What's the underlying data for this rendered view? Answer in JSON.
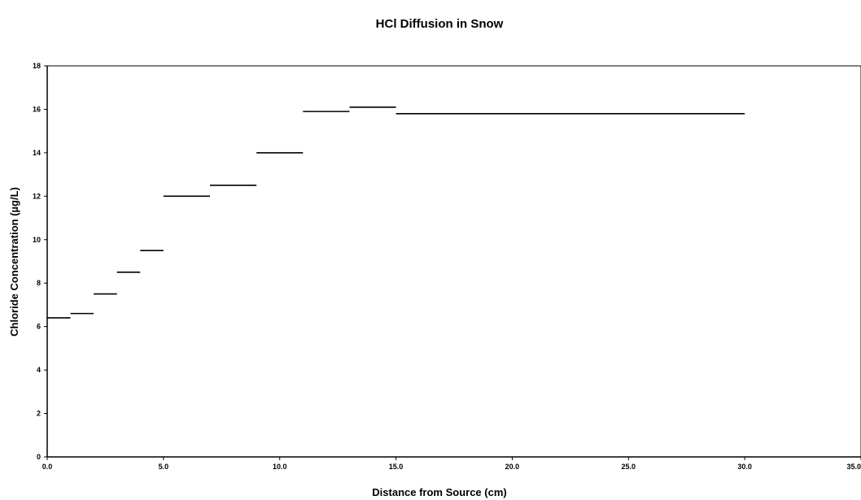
{
  "chart_data": {
    "type": "line",
    "title": "HCl Diffusion in Snow",
    "xlabel": "Distance from Source (cm)",
    "ylabel": "Chloride Concentration (µg/L)",
    "xlim": [
      0,
      35
    ],
    "ylim": [
      0,
      18
    ],
    "xticks": [
      0,
      5,
      10,
      15,
      20,
      25,
      30,
      35
    ],
    "xtick_labels": [
      "0.0",
      "5.0",
      "10.0",
      "15.0",
      "20.0",
      "25.0",
      "30.0",
      "35.0"
    ],
    "yticks": [
      0,
      2,
      4,
      6,
      8,
      10,
      12,
      14,
      16,
      18
    ],
    "ytick_labels": [
      "0",
      "2",
      "4",
      "6",
      "8",
      "10",
      "12",
      "14",
      "16",
      "18"
    ],
    "grid": false,
    "legend": "none",
    "line_color": "#000000",
    "segments": [
      {
        "x_start": 0.0,
        "x_end": 1.0,
        "y": 6.4
      },
      {
        "x_start": 1.0,
        "x_end": 2.0,
        "y": 6.6
      },
      {
        "x_start": 2.0,
        "x_end": 3.0,
        "y": 7.5
      },
      {
        "x_start": 3.0,
        "x_end": 4.0,
        "y": 8.5
      },
      {
        "x_start": 4.0,
        "x_end": 5.0,
        "y": 9.5
      },
      {
        "x_start": 5.0,
        "x_end": 7.0,
        "y": 12.0
      },
      {
        "x_start": 7.0,
        "x_end": 9.0,
        "y": 12.5
      },
      {
        "x_start": 9.0,
        "x_end": 11.0,
        "y": 14.0
      },
      {
        "x_start": 11.0,
        "x_end": 13.0,
        "y": 15.9
      },
      {
        "x_start": 13.0,
        "x_end": 15.0,
        "y": 16.1
      },
      {
        "x_start": 15.0,
        "x_end": 30.0,
        "y": 15.8
      }
    ]
  }
}
